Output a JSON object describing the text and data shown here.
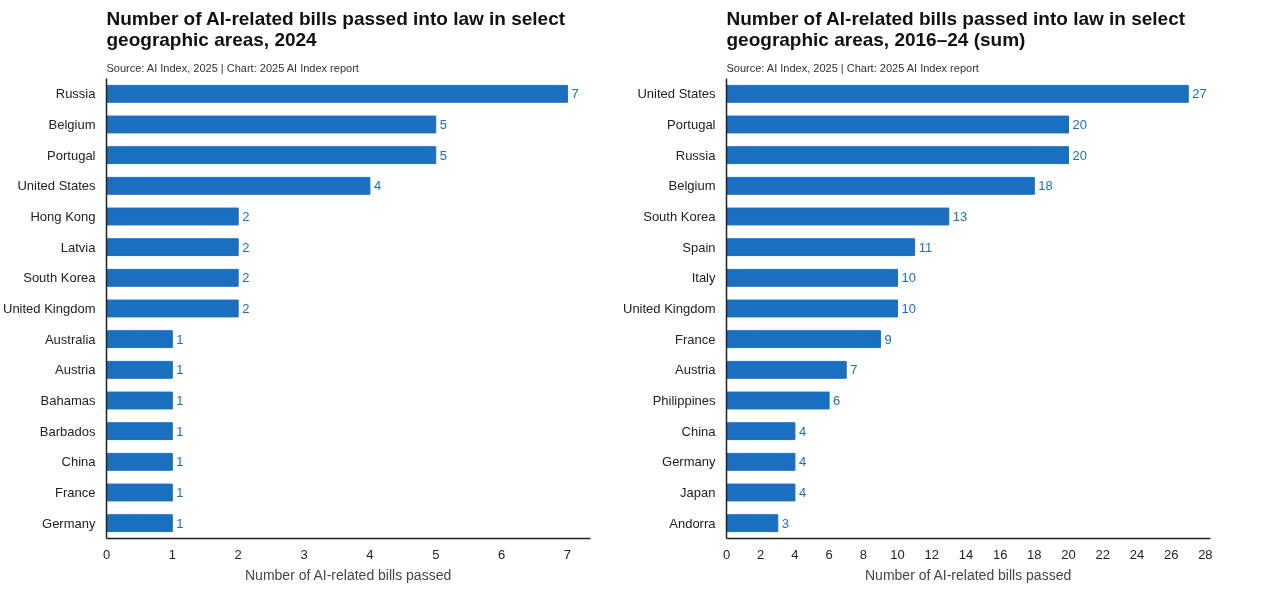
{
  "chart_data": [
    {
      "type": "bar",
      "orientation": "horizontal",
      "title": "Number of AI-related bills passed into law in select geographic areas, 2024",
      "annotations": [
        "Source: AI Index, 2025 | Chart: 2025 AI Index report"
      ],
      "xlabel": "Number of AI-related bills passed",
      "categories": [
        "Russia",
        "Belgium",
        "Portugal",
        "United States",
        "Hong Kong",
        "Latvia",
        "South Korea",
        "United Kingdom",
        "Australia",
        "Austria",
        "Bahamas",
        "Barbados",
        "China",
        "France",
        "Germany"
      ],
      "values": [
        7,
        5,
        5,
        4,
        2,
        2,
        2,
        2,
        1,
        1,
        1,
        1,
        1,
        1,
        1
      ],
      "color": "#1a6fc0",
      "data_labels": true,
      "xlim": [
        0,
        7.35
      ],
      "xticks": [
        0,
        1,
        2,
        3,
        4,
        5,
        6,
        7
      ],
      "grid": false
    },
    {
      "type": "bar",
      "orientation": "horizontal",
      "title": "Number of AI-related bills passed into law in select geographic areas, 2016–24 (sum)",
      "annotations": [
        "Source: AI Index, 2025 | Chart: 2025 AI Index report"
      ],
      "xlabel": "Number of AI-related bills passed",
      "categories": [
        "United States",
        "Portugal",
        "Russia",
        "Belgium",
        "South Korea",
        "Spain",
        "Italy",
        "United Kingdom",
        "France",
        "Austria",
        "Philippines",
        "China",
        "Germany",
        "Japan",
        "Andorra"
      ],
      "values": [
        27,
        20,
        20,
        18,
        13,
        11,
        10,
        10,
        9,
        7,
        6,
        4,
        4,
        4,
        3
      ],
      "color": "#1a6fc0",
      "data_labels": true,
      "xlim": [
        0,
        28.3
      ],
      "xticks": [
        0,
        2,
        4,
        6,
        8,
        10,
        12,
        14,
        16,
        18,
        20,
        22,
        24,
        26,
        28
      ],
      "grid": false
    }
  ]
}
